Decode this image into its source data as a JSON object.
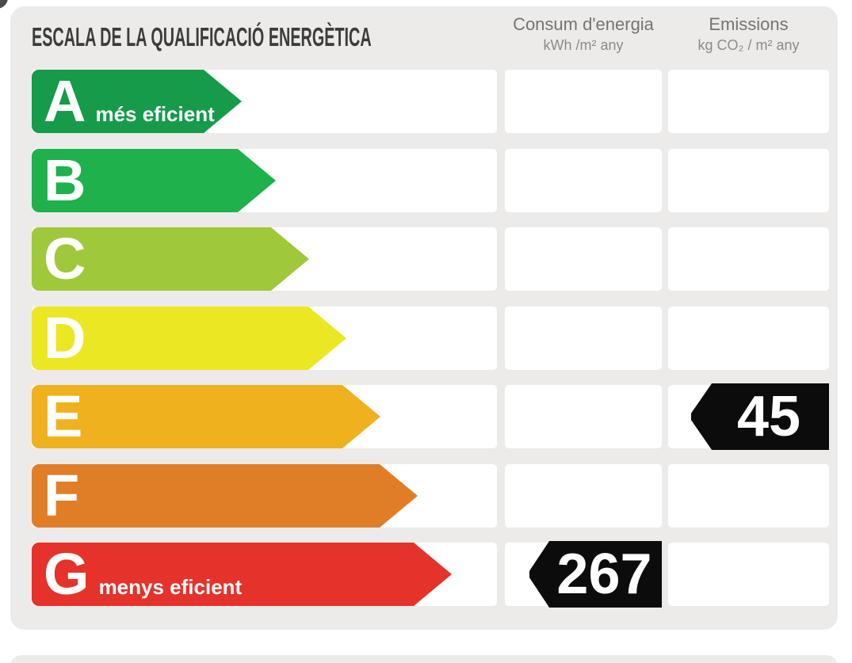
{
  "panel": {
    "title": "ESCALA DE LA QUALIFICACIÓ ENERGÈTICA",
    "columns": [
      {
        "title": "Consum d'energia",
        "units": "kWh /m²  any"
      },
      {
        "title": "Emissions",
        "units": "kg CO₂ / m²  any"
      }
    ]
  },
  "rows": [
    {
      "letter": "A",
      "note": "més eficient",
      "color_hex": "#159b4a"
    },
    {
      "letter": "B",
      "color_hex": "#1eb14c"
    },
    {
      "letter": "C",
      "color_hex": "#a0c83b"
    },
    {
      "letter": "D",
      "color_hex": "#ebe723"
    },
    {
      "letter": "E",
      "emissions": "45",
      "color_hex": "#efb21e"
    },
    {
      "letter": "F",
      "color_hex": "#e07e28"
    },
    {
      "letter": "G",
      "note": "menys eficient",
      "consum": "267",
      "color_hex": "#e5322b"
    }
  ],
  "colors": {
    "panel_background": "#ecebe9",
    "page_background": "#ffffff",
    "title_text": "#3c3c3b",
    "header_text": "#757472",
    "value_marker": "#0c0c0c",
    "marker_text": "#ffffff",
    "corner_decoration": "#4b4b4d"
  },
  "chart_data": {
    "type": "bar",
    "title": "ESCALA DE LA QUALIFICACIÓ ENERGÈTICA",
    "categories": [
      "A",
      "B",
      "C",
      "D",
      "E",
      "F",
      "G"
    ],
    "category_notes": {
      "A": "més eficient",
      "G": "menys eficient"
    },
    "category_colors": [
      "#159b4a",
      "#1eb14c",
      "#a0c83b",
      "#ebe723",
      "#efb21e",
      "#e07e28",
      "#e5322b"
    ],
    "series": [
      {
        "name": "Consum d'energia (kWh /m² any)",
        "values": [
          null,
          null,
          null,
          null,
          null,
          null,
          267
        ]
      },
      {
        "name": "Emissions (kg CO₂ / m² any)",
        "values": [
          null,
          null,
          null,
          null,
          45,
          null,
          null
        ]
      }
    ],
    "legend_position": "top",
    "grid": false,
    "orientation": "horizontal"
  }
}
